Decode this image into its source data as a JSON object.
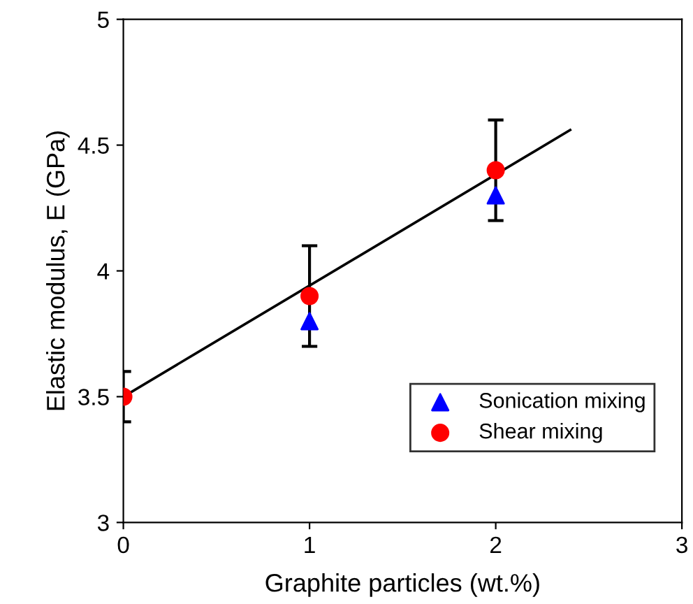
{
  "chart_data": {
    "type": "scatter",
    "xlabel": "Graphite particles (wt.%)",
    "ylabel": "Elastic modulus, E (GPa)",
    "x": [
      0,
      1,
      2
    ],
    "series": [
      {
        "name": "Sonication mixing",
        "color": "#0000ff",
        "marker": "triangle",
        "values": [
          null,
          3.8,
          4.3
        ]
      },
      {
        "name": "Shear mixing",
        "color": "#ff0000",
        "marker": "circle",
        "values": [
          3.5,
          3.9,
          4.4
        ],
        "errors": [
          0.1,
          0.2,
          0.2
        ]
      },
      {
        "type": "line",
        "color": "#000000",
        "x": [
          0,
          2.4
        ],
        "values": [
          3.5,
          4.56
        ],
        "marker": "none",
        "line_style": "solid"
      }
    ],
    "xlim": [
      0,
      3
    ],
    "xticks": [
      0,
      1,
      2,
      3
    ],
    "ylim": [
      3,
      5
    ],
    "yticks": [
      3,
      3.5,
      4,
      4.5,
      5
    ],
    "grid": false,
    "legend": "bottom right"
  }
}
